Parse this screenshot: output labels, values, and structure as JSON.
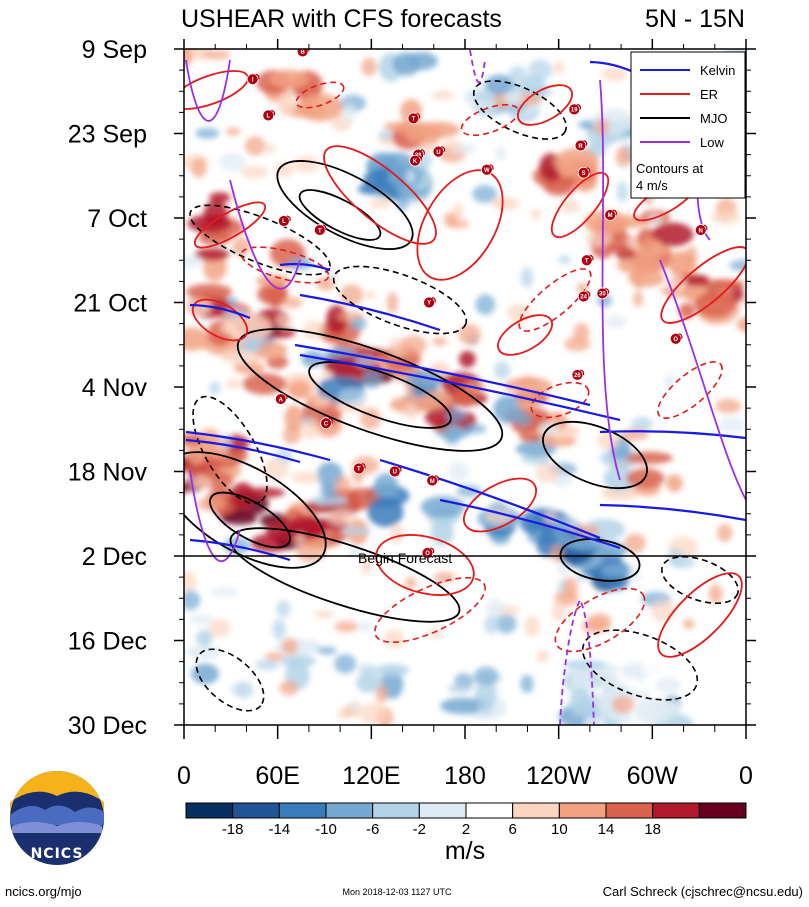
{
  "header": {
    "title": "USHEAR with CFS forecasts",
    "region": "5N - 15N"
  },
  "chart_data": {
    "type": "heatmap",
    "title": "USHEAR with CFS forecasts",
    "subtitle": "5N - 15N",
    "x_axis": {
      "ticks": [
        {
          "lon": 0,
          "label": "0"
        },
        {
          "lon": 60,
          "label": "60E"
        },
        {
          "lon": 120,
          "label": "120E"
        },
        {
          "lon": 180,
          "label": "180"
        },
        {
          "lon": 240,
          "label": "120W"
        },
        {
          "lon": 300,
          "label": "60W"
        },
        {
          "lon": 360,
          "label": "0"
        }
      ],
      "range": [
        0,
        360
      ]
    },
    "y_axis": {
      "ticks": [
        {
          "day": 0,
          "label": "9 Sep"
        },
        {
          "day": 14,
          "label": "23 Sep"
        },
        {
          "day": 28,
          "label": "7 Oct"
        },
        {
          "day": 42,
          "label": "21 Oct"
        },
        {
          "day": 56,
          "label": "4 Nov"
        },
        {
          "day": 70,
          "label": "18 Nov"
        },
        {
          "day": 84,
          "label": "2 Dec"
        },
        {
          "day": 98,
          "label": "16 Dec"
        },
        {
          "day": 112,
          "label": "30 Dec"
        }
      ],
      "range": [
        0,
        112
      ],
      "direction": "downward"
    },
    "forecast_start": {
      "day": 84,
      "label": "Begin Forecast"
    },
    "colorbar": {
      "unit": "m/s",
      "levels": [
        "-18",
        "-14",
        "-10",
        "-6",
        "-2",
        "2",
        "6",
        "10",
        "14",
        "18"
      ],
      "colors": [
        "#053061",
        "#1f5596",
        "#3a7bbb",
        "#75a9d1",
        "#b3d3e8",
        "#deebf4",
        "#ffffff",
        "#fbd5c2",
        "#f2a283",
        "#d9634f",
        "#b2182b",
        "#67001f"
      ]
    },
    "legend": {
      "placement": "top-right",
      "entries": [
        {
          "label": "Kelvin",
          "color": "#1a1ae6"
        },
        {
          "label": "ER",
          "color": "#e61a1a"
        },
        {
          "label": "MJO",
          "color": "#000000"
        },
        {
          "label": "Low",
          "color": "#9b30e0"
        }
      ],
      "note": "Contours at\n4 m/s"
    },
    "storms": [
      {
        "lon": 76,
        "day": 0.4,
        "label": "B"
      },
      {
        "lon": 44,
        "day": 5,
        "label": "I"
      },
      {
        "lon": 54,
        "day": 11,
        "label": "L"
      },
      {
        "lon": 147,
        "day": 11.5,
        "label": "T"
      },
      {
        "lon": 150,
        "day": 17.5,
        "label": "28"
      },
      {
        "lon": 148,
        "day": 18.5,
        "label": "K"
      },
      {
        "lon": 163,
        "day": 17,
        "label": "U"
      },
      {
        "lon": 194,
        "day": 20,
        "label": "W"
      },
      {
        "lon": 250,
        "day": 10,
        "label": "19"
      },
      {
        "lon": 254,
        "day": 16,
        "label": "R"
      },
      {
        "lon": 256,
        "day": 20.5,
        "label": "S"
      },
      {
        "lon": 273,
        "day": 27.5,
        "label": "M"
      },
      {
        "lon": 331,
        "day": 30,
        "label": "N"
      },
      {
        "lon": 64,
        "day": 28.5,
        "label": "L"
      },
      {
        "lon": 87,
        "day": 30,
        "label": "T"
      },
      {
        "lon": 258,
        "day": 35,
        "label": "T"
      },
      {
        "lon": 256,
        "day": 41,
        "label": "24"
      },
      {
        "lon": 268,
        "day": 40.5,
        "label": "30"
      },
      {
        "lon": 157,
        "day": 42,
        "label": "Y"
      },
      {
        "lon": 315,
        "day": 48,
        "label": "O"
      },
      {
        "lon": 252,
        "day": 54,
        "label": "26"
      },
      {
        "lon": 62,
        "day": 58,
        "label": "A"
      },
      {
        "lon": 91,
        "day": 62,
        "label": "C"
      },
      {
        "lon": 112,
        "day": 69.5,
        "label": "T"
      },
      {
        "lon": 135,
        "day": 70,
        "label": "U"
      },
      {
        "lon": 159,
        "day": 71.5,
        "label": "M"
      },
      {
        "lon": 156,
        "day": 83.5,
        "label": "O"
      }
    ]
  },
  "footer": {
    "logo_text": "NCICS",
    "site": "ncics.org/mjo",
    "timestamp": "Mon 2018-12-03 1127 UTC",
    "author": "Carl Schreck (cjschrec@ncsu.edu)"
  }
}
